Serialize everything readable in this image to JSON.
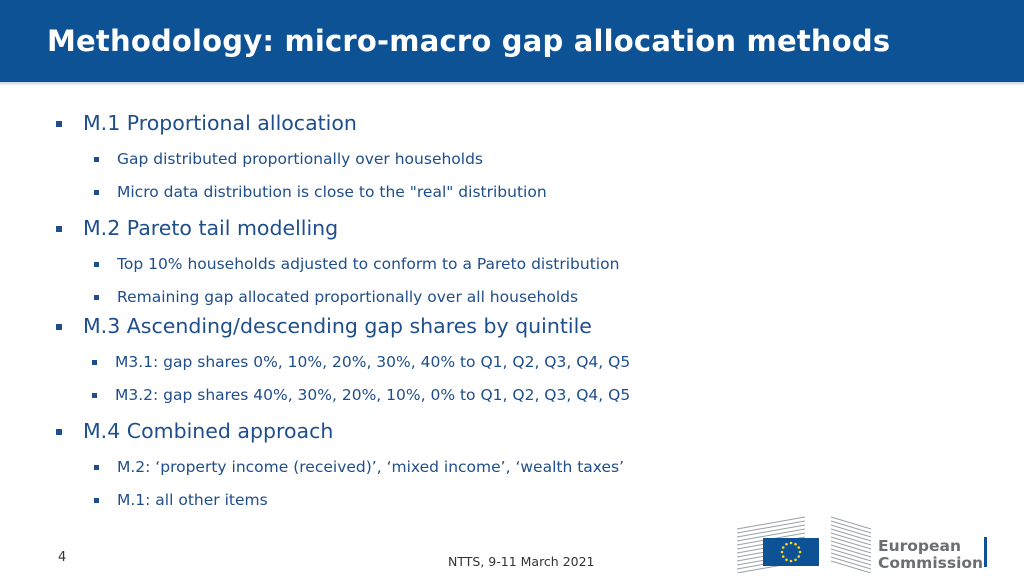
{
  "slide": {
    "title": "Methodology: micro-macro gap allocation methods",
    "items": [
      {
        "label": "M.1 Proportional allocation",
        "sub": [
          "Gap distributed proportionally over households",
          "Micro data distribution is close to the \"real\" distribution"
        ]
      },
      {
        "label": "M.2 Pareto tail modelling",
        "sub": [
          "Top 10% households adjusted to conform to a Pareto distribution",
          "Remaining gap allocated proportionally over all households"
        ]
      },
      {
        "label": "M.3 Ascending/descending gap shares by quintile",
        "sub": [
          "M3.1: gap shares 0%, 10%, 20%, 30%, 40% to Q1, Q2, Q3, Q4, Q5",
          "M3.2: gap shares 40%, 30%, 20%, 10%, 0% to Q1, Q2, Q3, Q4, Q5"
        ]
      },
      {
        "label": "M.4 Combined approach",
        "sub": [
          "M.2: ‘property income (received)’, ‘mixed income’, ‘wealth taxes’",
          "M.1: all other items"
        ]
      }
    ]
  },
  "footer": {
    "page_number": "4",
    "event": "NTTS, 9-11 March 2021"
  },
  "logo": {
    "line1": "European",
    "line2": "Commission",
    "flag_color": "#0e5296",
    "star_color": "#ffd617"
  }
}
